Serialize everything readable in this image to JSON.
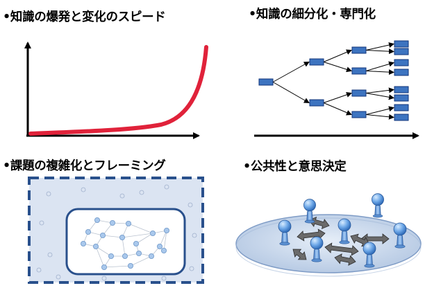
{
  "panels": {
    "explosion": {
      "title": "•知識の爆発と変化のスピード"
    },
    "specialization": {
      "title": "•知識の細分化・専門化"
    },
    "framing": {
      "title": "•課題の複雑化とフレーミング"
    },
    "public": {
      "title": "•公共性と意思決定"
    }
  },
  "colors": {
    "curve": "#e0223a",
    "box_fill": "#3d74c0",
    "box_stroke": "#12357a",
    "frame": "#29508c",
    "frame_fill": "#dbe4f2",
    "node": "#a9c8ec",
    "person": "#5f9bdf",
    "disc": "#c4d4ea",
    "arrow": "#555555"
  }
}
